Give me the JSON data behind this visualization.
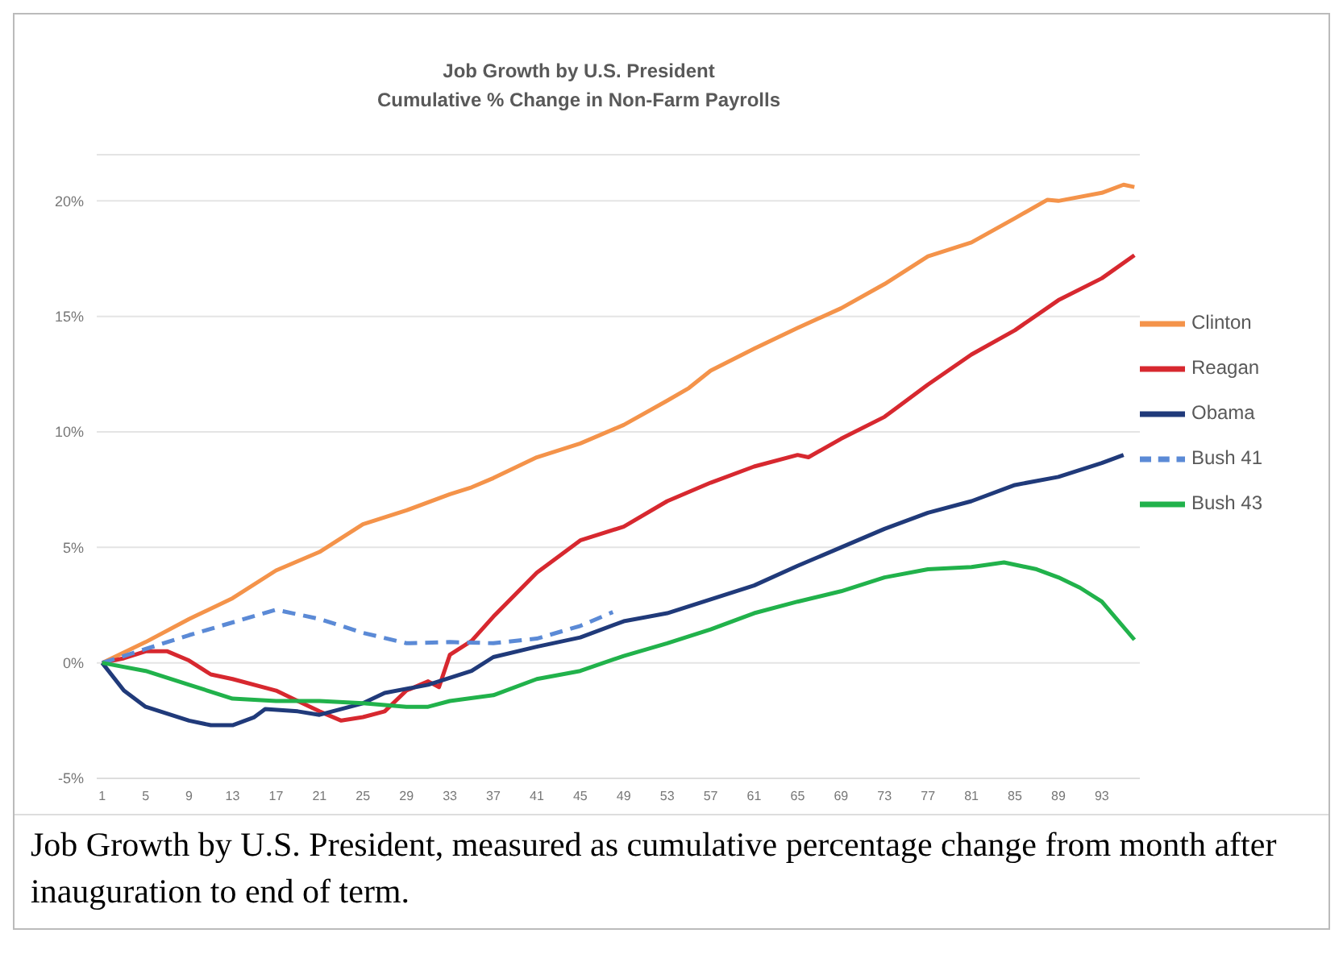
{
  "chart_data": {
    "type": "line",
    "title": "Job Growth by U.S. President",
    "subtitle": "Cumulative % Change in Non-Farm Payrolls",
    "annotations": [
      "Job Growth by U.S. President, measured as cumulative percentage change from month after inauguration to end of term."
    ],
    "xlim": [
      0.5,
      96.5
    ],
    "xticks": [
      1,
      5,
      9,
      13,
      17,
      21,
      25,
      29,
      33,
      37,
      41,
      45,
      49,
      53,
      57,
      61,
      65,
      69,
      73,
      77,
      81,
      85,
      89,
      93
    ],
    "ylim": [
      -5,
      22
    ],
    "yticks": [
      {
        "value": -5,
        "label": "-5%"
      },
      {
        "value": 0,
        "label": "0%"
      },
      {
        "value": 5,
        "label": "5%"
      },
      {
        "value": 10,
        "label": "10%"
      },
      {
        "value": 15,
        "label": "15%"
      },
      {
        "value": 20,
        "label": "20%"
      }
    ],
    "grid": "y",
    "legend": "right",
    "marker": "none",
    "series": [
      {
        "name": "Clinton",
        "color": "#f4934a",
        "line_style": "solid",
        "x": [
          1,
          5,
          9,
          13,
          17,
          21,
          25,
          29,
          33,
          35,
          37,
          41,
          45,
          49,
          53,
          55,
          57,
          61,
          65,
          69,
          73,
          77,
          81,
          85,
          88,
          89,
          93,
          95,
          96
        ],
        "values": [
          0,
          0.9,
          1.9,
          2.8,
          4.0,
          4.8,
          6.0,
          6.6,
          7.3,
          7.6,
          8.0,
          8.9,
          9.5,
          10.3,
          11.35,
          11.9,
          12.65,
          13.6,
          14.5,
          15.35,
          16.4,
          17.6,
          18.2,
          19.25,
          20.05,
          20.0,
          20.35,
          20.7,
          20.6
        ]
      },
      {
        "name": "Reagan",
        "color": "#d7282f",
        "line_style": "solid",
        "x": [
          1,
          3,
          5,
          7,
          9,
          11,
          13,
          17,
          19,
          21,
          23,
          25,
          27,
          29,
          31,
          32,
          33,
          35,
          37,
          41,
          45,
          49,
          53,
          57,
          61,
          65,
          66,
          69,
          73,
          77,
          81,
          85,
          89,
          93,
          96
        ],
        "values": [
          0,
          0.2,
          0.5,
          0.5,
          0.1,
          -0.5,
          -0.7,
          -1.2,
          -1.65,
          -2.1,
          -2.5,
          -2.35,
          -2.1,
          -1.2,
          -0.8,
          -1.05,
          0.35,
          0.95,
          2.0,
          3.9,
          5.3,
          5.9,
          7.0,
          7.8,
          8.5,
          9.0,
          8.9,
          9.7,
          10.65,
          12.05,
          13.35,
          14.4,
          15.7,
          16.65,
          17.65
        ]
      },
      {
        "name": "Obama",
        "color": "#203a7a",
        "line_style": "solid",
        "x": [
          1,
          3,
          5,
          9,
          11,
          13,
          15,
          16,
          19,
          21,
          25,
          27,
          31,
          35,
          37,
          41,
          45,
          49,
          53,
          57,
          61,
          65,
          69,
          73,
          77,
          81,
          85,
          89,
          93,
          95
        ],
        "values": [
          0,
          -1.2,
          -1.9,
          -2.5,
          -2.7,
          -2.7,
          -2.35,
          -2.0,
          -2.1,
          -2.25,
          -1.75,
          -1.3,
          -0.95,
          -0.35,
          0.25,
          0.7,
          1.1,
          1.8,
          2.15,
          2.75,
          3.35,
          4.2,
          5.0,
          5.8,
          6.5,
          7.0,
          7.7,
          8.05,
          8.65,
          9.0
        ]
      },
      {
        "name": "Bush 41",
        "color": "#5b8ad6",
        "line_style": "dashed",
        "x": [
          1,
          5,
          9,
          13,
          17,
          21,
          25,
          29,
          33,
          37,
          41,
          45,
          48
        ],
        "values": [
          0,
          0.6,
          1.2,
          1.75,
          2.3,
          1.9,
          1.3,
          0.85,
          0.9,
          0.85,
          1.05,
          1.6,
          2.2
        ]
      },
      {
        "name": "Bush 43",
        "color": "#21b24b",
        "line_style": "solid",
        "x": [
          1,
          5,
          9,
          13,
          17,
          21,
          25,
          29,
          31,
          33,
          37,
          41,
          45,
          49,
          53,
          57,
          61,
          65,
          69,
          73,
          77,
          81,
          84,
          87,
          89,
          91,
          93,
          96
        ],
        "values": [
          0,
          -0.35,
          -0.95,
          -1.55,
          -1.65,
          -1.65,
          -1.75,
          -1.9,
          -1.9,
          -1.65,
          -1.4,
          -0.7,
          -0.35,
          0.3,
          0.85,
          1.45,
          2.15,
          2.65,
          3.1,
          3.7,
          4.05,
          4.15,
          4.35,
          4.05,
          3.7,
          3.25,
          2.65,
          1.0
        ]
      }
    ]
  }
}
